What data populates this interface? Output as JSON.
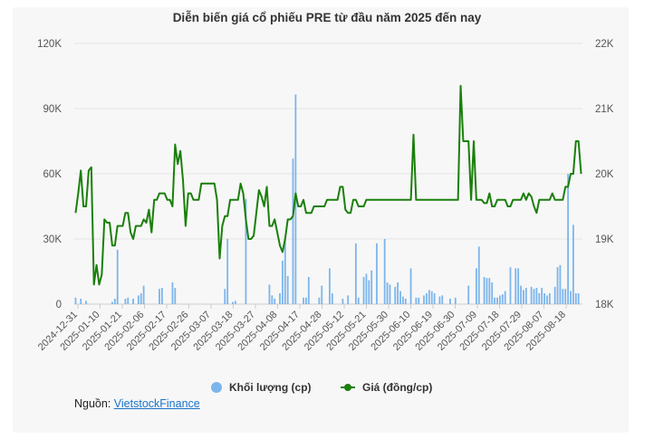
{
  "page": {
    "source_prefix": "Nguồn: ",
    "source_link": "VietstockFinance"
  },
  "colors": {
    "volume": "#7cb5ec",
    "price": "#1a7f0b",
    "grid": "#e6e6e6",
    "background": "#f7f7f7"
  },
  "chart_data": {
    "type": "bar+line",
    "title": "Diễn biến giá cổ phiếu PRE từ đầu năm 2025 đến nay",
    "y_left": {
      "ylim": [
        0,
        120000
      ],
      "ticks": [
        0,
        30000,
        60000,
        90000,
        120000
      ],
      "tick_labels": [
        "0",
        "30K",
        "60K",
        "90K",
        "120K"
      ]
    },
    "y_right": {
      "ylim": [
        18000,
        22000
      ],
      "ticks": [
        18000,
        19000,
        20000,
        21000,
        22000
      ],
      "tick_labels": [
        "18K",
        "19K",
        "20K",
        "21K",
        "22K"
      ]
    },
    "x_tick_labels": [
      "2024-12-31",
      "2025-01-10",
      "2025-01-21",
      "2025-02-06",
      "2025-02-17",
      "2025-02-26",
      "2025-03-07",
      "2025-03-18",
      "2025-03-27",
      "2025-04-08",
      "2025-04-17",
      "2025-04-28",
      "2025-05-12",
      "2025-05-21",
      "2025-05-30",
      "2025-06-10",
      "2025-06-19",
      "2025-06-30",
      "2025-07-09",
      "2025-07-18",
      "2025-07-29",
      "2025-08-07",
      "2025-08-18"
    ],
    "grid": true,
    "legend_position": "bottom",
    "series": [
      {
        "name": "Khối lượng (cp)",
        "type": "bar",
        "axis": "left",
        "values": [
          3000,
          0,
          2500,
          0,
          1500,
          0,
          0,
          0,
          0,
          0,
          0,
          0,
          0,
          0,
          1000,
          2500,
          25000,
          0,
          0,
          2500,
          3000,
          0,
          2500,
          0,
          4000,
          5000,
          8500,
          0,
          0,
          0,
          0,
          0,
          7000,
          7500,
          0,
          0,
          0,
          10000,
          7500,
          0,
          0,
          0,
          0,
          0,
          0,
          0,
          0,
          0,
          0,
          0,
          0,
          0,
          0,
          0,
          0,
          0,
          0,
          7000,
          30000,
          0,
          1000,
          1500,
          0,
          0,
          0,
          48500,
          0,
          0,
          0,
          0,
          0,
          0,
          0,
          0,
          9000,
          4000,
          2500,
          0,
          5000,
          20000,
          30000,
          13000,
          0,
          67000,
          96500,
          0,
          0,
          3000,
          3000,
          12500,
          0,
          0,
          0,
          3000,
          8500,
          0,
          0,
          16500,
          5000,
          0,
          0,
          0,
          2500,
          0,
          4000,
          0,
          0,
          28000,
          3000,
          0,
          12500,
          14000,
          11000,
          15500,
          0,
          28000,
          0,
          0,
          30000,
          10000,
          9000,
          0,
          8000,
          10000,
          6000,
          3500,
          2500,
          0,
          16500,
          0,
          3000,
          3000,
          0,
          4000,
          5000,
          6500,
          6000,
          5000,
          0,
          3500,
          4000,
          0,
          0,
          2500,
          0,
          3000,
          0,
          0,
          0,
          0,
          8500,
          0,
          0,
          16500,
          26500,
          0,
          12500,
          12000,
          12000,
          10000,
          3000,
          3000,
          4000,
          4500,
          6000,
          0,
          17000,
          0,
          16500,
          16500,
          8500,
          6500,
          7500,
          0,
          8000,
          7000,
          7500,
          5000,
          7500,
          5000,
          4000,
          5000,
          0,
          8000,
          17000,
          18000,
          7000,
          7000,
          60000,
          6000,
          36500,
          5000,
          5000
        ]
      },
      {
        "name": "Giá (đồng/cp)",
        "type": "line",
        "axis": "right",
        "values": [
          19400,
          19700,
          20050,
          19500,
          19500,
          20050,
          20100,
          18300,
          18600,
          18300,
          18450,
          19300,
          19250,
          19250,
          18900,
          18900,
          19200,
          19200,
          19200,
          19400,
          19400,
          19100,
          19000,
          19200,
          19200,
          19200,
          19300,
          19250,
          19450,
          19100,
          19600,
          19600,
          19700,
          19700,
          19700,
          19600,
          19600,
          19500,
          20450,
          20150,
          20350,
          19900,
          19200,
          19700,
          19700,
          19600,
          19600,
          19600,
          19850,
          19850,
          19850,
          19850,
          19850,
          19850,
          19600,
          18700,
          19200,
          19350,
          19350,
          19600,
          19600,
          19600,
          19600,
          19850,
          19700,
          19300,
          19000,
          19000,
          19050,
          19400,
          19750,
          19650,
          19500,
          19800,
          19200,
          19200,
          19300,
          19100,
          18900,
          18800,
          19000,
          19300,
          19300,
          19350,
          19700,
          19500,
          19500,
          19600,
          19400,
          19400,
          19400,
          19500,
          19500,
          19500,
          19500,
          19500,
          19600,
          19600,
          19600,
          19600,
          19600,
          19800,
          19800,
          19450,
          19400,
          19400,
          19600,
          19600,
          19500,
          19500,
          19500,
          19600,
          19600,
          19600,
          19600,
          19600,
          19600,
          19600,
          19600,
          19600,
          19600,
          19600,
          19600,
          19600,
          19600,
          19600,
          19600,
          19600,
          19600,
          20600,
          19600,
          19600,
          19600,
          19600,
          19600,
          19600,
          19600,
          19600,
          19600,
          19600,
          19600,
          19600,
          19600,
          19600,
          19600,
          19600,
          19600,
          21350,
          20500,
          20500,
          20500,
          19600,
          20500,
          19600,
          19600,
          19600,
          19550,
          19550,
          19700,
          19500,
          19500,
          19600,
          19600,
          19600,
          19600,
          19500,
          19500,
          19600,
          19600,
          19600,
          19600,
          19700,
          19600,
          19700,
          19650,
          19500,
          19400,
          19600,
          19600,
          19600,
          19600,
          19600,
          19700,
          19600,
          19600,
          19600,
          19600,
          19800,
          19800,
          20000,
          20000,
          20500,
          20500,
          20000
        ]
      }
    ]
  }
}
